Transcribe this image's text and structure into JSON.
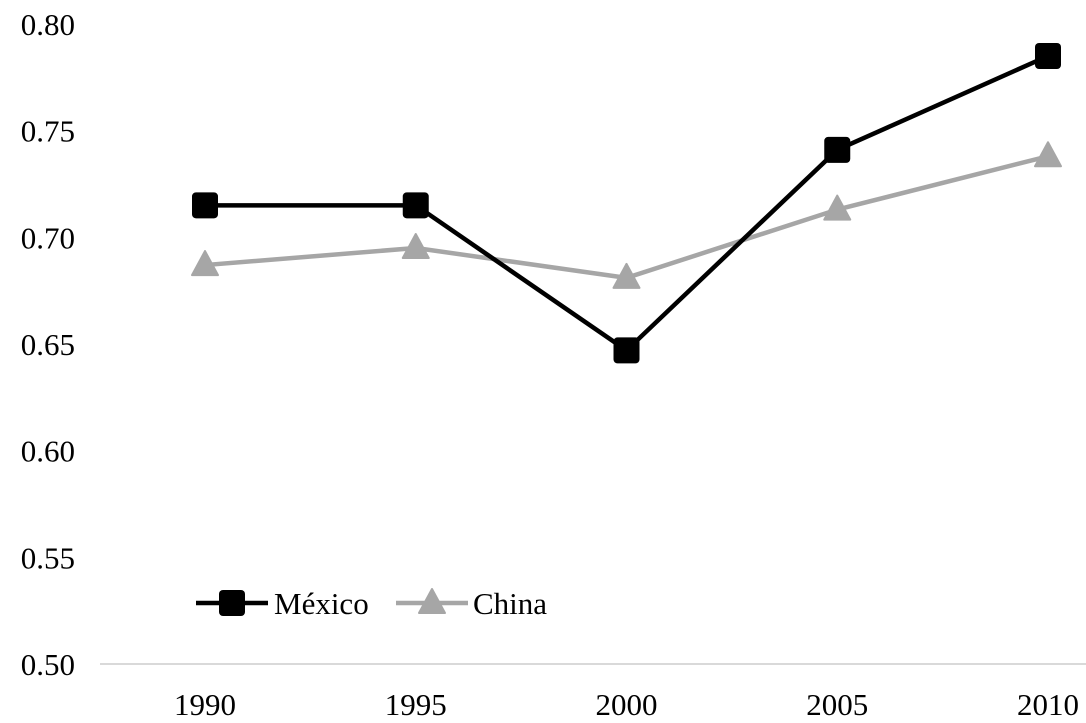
{
  "chart_data": {
    "type": "line",
    "title": "",
    "xlabel": "",
    "ylabel": "",
    "categories": [
      "1990",
      "1995",
      "2000",
      "2005",
      "2010"
    ],
    "ylim": [
      0.5,
      0.8
    ],
    "y_ticks": [
      "0.50",
      "0.55",
      "0.60",
      "0.65",
      "0.70",
      "0.75",
      "0.80"
    ],
    "grid": false,
    "legend_position": "bottom-left",
    "series": [
      {
        "name": "México",
        "values": [
          0.715,
          0.715,
          0.647,
          0.741,
          0.785
        ],
        "color": "#000000",
        "marker": "square"
      },
      {
        "name": "China",
        "values": [
          0.687,
          0.695,
          0.681,
          0.713,
          0.738
        ],
        "color": "#a6a6a6",
        "marker": "triangle"
      }
    ]
  }
}
